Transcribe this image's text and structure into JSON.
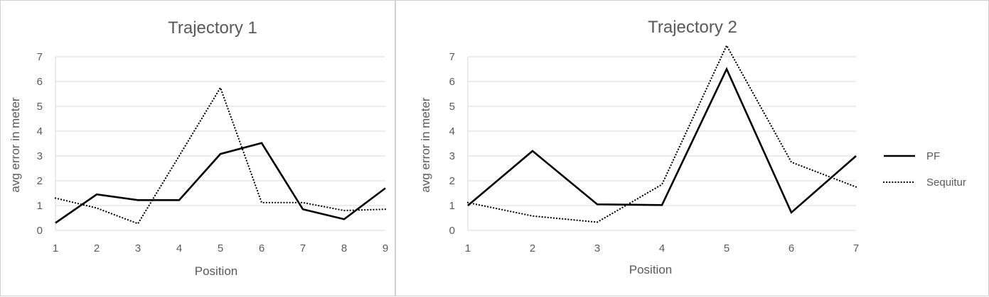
{
  "chart_data": [
    {
      "type": "line",
      "title": "Trajectory 1",
      "xlabel": "Position",
      "ylabel": "avg error in meter",
      "x": [
        1,
        2,
        3,
        4,
        5,
        6,
        7,
        8,
        9
      ],
      "xlim": [
        1,
        9
      ],
      "ylim": [
        0,
        7
      ],
      "yticks": [
        0,
        1,
        2,
        3,
        4,
        5,
        6,
        7
      ],
      "grid": true,
      "series": [
        {
          "name": "PF",
          "style": "solid",
          "color": "#000000",
          "values": [
            0.3,
            1.45,
            1.22,
            1.22,
            3.08,
            3.52,
            0.85,
            0.45,
            1.7
          ]
        },
        {
          "name": "Sequitur",
          "style": "dotted",
          "color": "#000000",
          "values": [
            1.3,
            0.9,
            0.27,
            3.0,
            5.75,
            1.12,
            1.12,
            0.8,
            0.85
          ]
        }
      ]
    },
    {
      "type": "line",
      "title": "Trajectory 2",
      "xlabel": "Position",
      "ylabel": "avg error in meter",
      "x": [
        1,
        2,
        3,
        4,
        5,
        6,
        7
      ],
      "xlim": [
        1,
        7
      ],
      "ylim": [
        0,
        7
      ],
      "yticks": [
        0,
        1,
        2,
        3,
        4,
        5,
        6,
        7
      ],
      "grid": true,
      "legend_position": "right",
      "series": [
        {
          "name": "PF",
          "style": "solid",
          "color": "#000000",
          "values": [
            1.0,
            3.2,
            1.05,
            1.02,
            6.5,
            0.72,
            3.0
          ]
        },
        {
          "name": "Sequitur",
          "style": "dotted",
          "color": "#000000",
          "values": [
            1.12,
            0.58,
            0.33,
            1.85,
            7.45,
            2.75,
            1.75
          ]
        }
      ]
    }
  ]
}
